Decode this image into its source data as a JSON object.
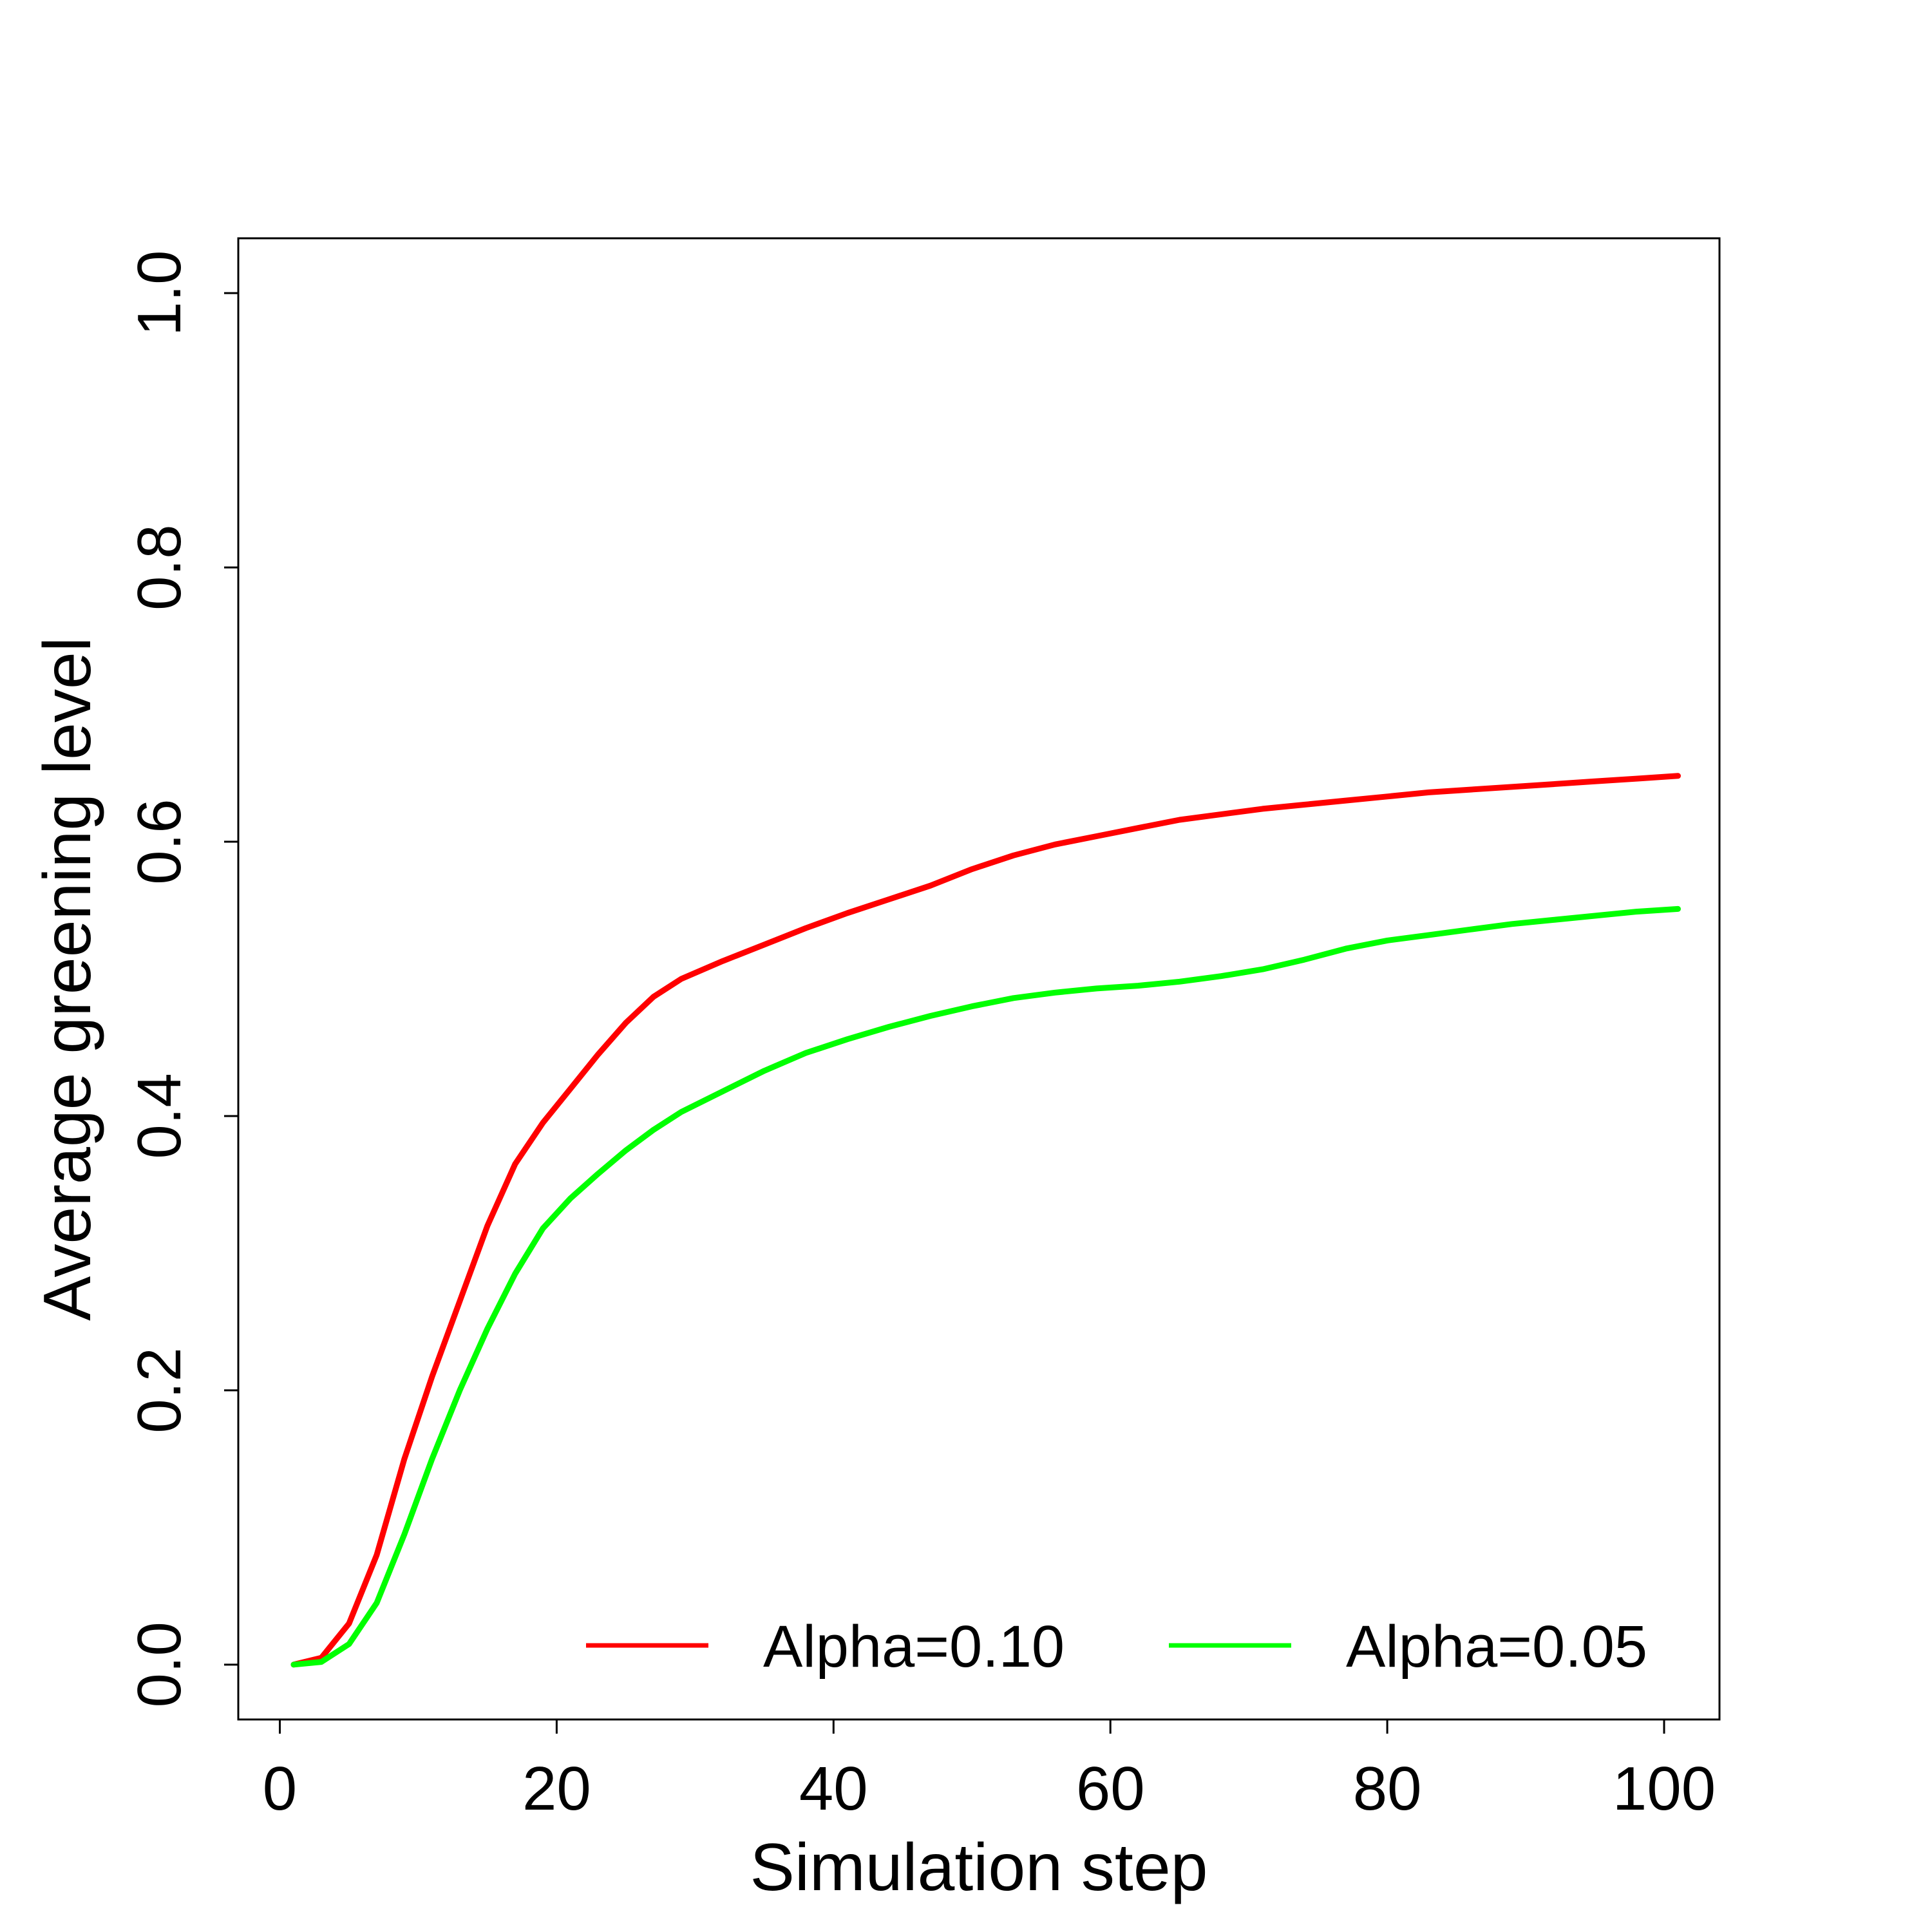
{
  "chart_data": {
    "type": "line",
    "title": "",
    "xlabel": "Simulation step",
    "ylabel": "Average greening level",
    "xlim": [
      -3,
      104
    ],
    "ylim": [
      -0.04,
      1.04
    ],
    "xticks": [
      0,
      20,
      40,
      60,
      80,
      100
    ],
    "xtick_labels": [
      "0",
      "20",
      "40",
      "60",
      "80",
      "100"
    ],
    "yticks": [
      0.0,
      0.2,
      0.4,
      0.6,
      0.8,
      1.0
    ],
    "ytick_labels": [
      "0.0",
      "0.2",
      "0.4",
      "0.6",
      "0.8",
      "1.0"
    ],
    "grid": false,
    "legend_position": "bottom-right",
    "x": [
      1,
      3,
      5,
      7,
      9,
      11,
      13,
      15,
      17,
      19,
      21,
      23,
      25,
      27,
      29,
      32,
      35,
      38,
      41,
      44,
      47,
      50,
      53,
      56,
      59,
      62,
      65,
      68,
      71,
      74,
      77,
      80,
      83,
      86,
      89,
      92,
      95,
      98,
      101
    ],
    "series": [
      {
        "name": "Alpha=0.10",
        "color": "#ff0000",
        "values": [
          0.0,
          0.005,
          0.03,
          0.08,
          0.15,
          0.21,
          0.265,
          0.32,
          0.365,
          0.395,
          0.42,
          0.445,
          0.468,
          0.487,
          0.5,
          0.513,
          0.525,
          0.537,
          0.548,
          0.558,
          0.568,
          0.58,
          0.59,
          0.598,
          0.604,
          0.61,
          0.616,
          0.62,
          0.624,
          0.627,
          0.63,
          0.633,
          0.636,
          0.638,
          0.64,
          0.642,
          0.644,
          0.646,
          0.648
        ]
      },
      {
        "name": "Alpha=0.05",
        "color": "#00ff00",
        "values": [
          0.0,
          0.002,
          0.015,
          0.045,
          0.095,
          0.15,
          0.2,
          0.245,
          0.285,
          0.318,
          0.34,
          0.358,
          0.375,
          0.39,
          0.403,
          0.418,
          0.433,
          0.446,
          0.456,
          0.465,
          0.473,
          0.48,
          0.486,
          0.49,
          0.493,
          0.495,
          0.498,
          0.502,
          0.507,
          0.514,
          0.522,
          0.528,
          0.532,
          0.536,
          0.54,
          0.543,
          0.546,
          0.549,
          0.551
        ]
      }
    ]
  }
}
